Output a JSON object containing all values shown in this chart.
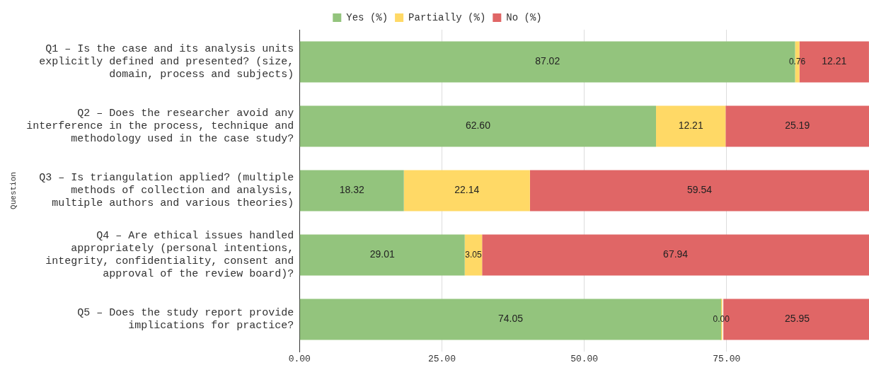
{
  "chart_data": {
    "type": "bar",
    "orientation": "horizontal",
    "stacked": true,
    "ylabel": "Question",
    "categories": [
      "Q1 – Is the case and its analysis units explicitly defined and presented? (size, domain, process and subjects)",
      "Q2 – Does the researcher avoid any interference in the process, technique and methodology used in the case study?",
      "Q3 – Is triangulation applied? (multiple methods of collection and analysis, multiple authors and various theories)",
      "Q4 – Are ethical issues handled appropriately (personal intentions, integrity, confidentiality, consent and approval of the review board)?",
      "Q5 – Does the study report provide implications for practice?"
    ],
    "series": [
      {
        "name": "Yes (%)",
        "color": "#93c47d",
        "values": [
          87.02,
          62.6,
          18.32,
          29.01,
          74.05
        ],
        "value_labels": [
          "87.02",
          "62.60",
          "18.32",
          "29.01",
          "74.05"
        ]
      },
      {
        "name": "Partially (%)",
        "color": "#ffd966",
        "values": [
          0.76,
          12.21,
          22.14,
          3.05,
          0.0
        ],
        "value_labels": [
          "0.76",
          "12.21",
          "22.14",
          "3.05",
          "0.00"
        ]
      },
      {
        "name": "No (%)",
        "color": "#e06666",
        "values": [
          12.21,
          25.19,
          59.54,
          67.94,
          25.95
        ],
        "value_labels": [
          "12.21",
          "25.19",
          "59.54",
          "67.94",
          "25.95"
        ]
      }
    ],
    "xlim": [
      0,
      100
    ],
    "xticks": [
      {
        "value": 0,
        "label": "0.00"
      },
      {
        "value": 25,
        "label": "25.00"
      },
      {
        "value": 50,
        "label": "50.00"
      },
      {
        "value": 75,
        "label": "75.00"
      }
    ],
    "grid": "x",
    "legend": "top"
  }
}
